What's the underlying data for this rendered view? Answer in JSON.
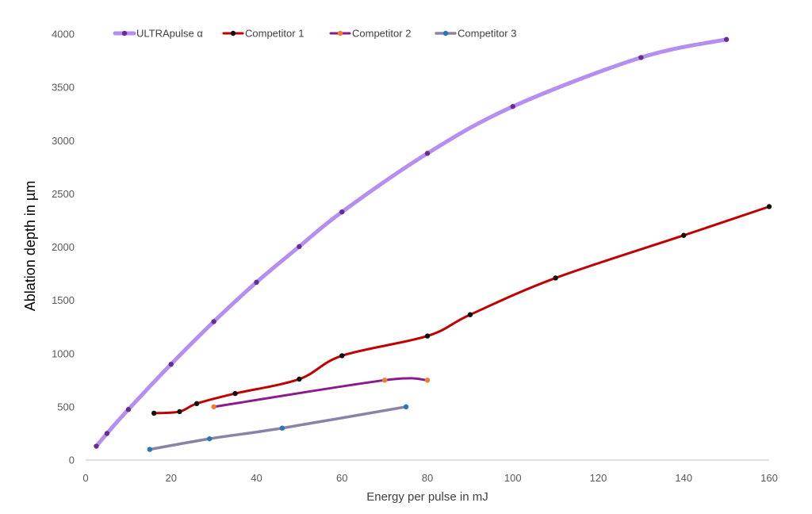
{
  "chart_data": {
    "type": "line",
    "title": "",
    "xlabel": "Energy per pulse in mJ",
    "ylabel": "Ablation depth in µm",
    "xlim": [
      0,
      160
    ],
    "ylim": [
      0,
      4000
    ],
    "x_ticks": [
      0,
      20,
      40,
      60,
      80,
      100,
      120,
      140,
      160
    ],
    "y_ticks": [
      0,
      500,
      1000,
      1500,
      2000,
      2500,
      3000,
      3500,
      4000
    ],
    "grid": false,
    "legend_position": "top",
    "series": [
      {
        "name": "ULTRApulse α",
        "line_color": "#b48ef0",
        "marker_color": "#6a2c91",
        "points": [
          [
            2.5,
            130
          ],
          [
            5,
            250
          ],
          [
            10,
            475
          ],
          [
            20,
            900
          ],
          [
            30,
            1300
          ],
          [
            40,
            1670
          ],
          [
            50,
            2005
          ],
          [
            60,
            2330
          ],
          [
            80,
            2880
          ],
          [
            100,
            3320
          ],
          [
            130,
            3780
          ],
          [
            150,
            3950
          ]
        ]
      },
      {
        "name": "Competitor 1",
        "line_color": "#c00000",
        "marker_color": "#111111",
        "points": [
          [
            16,
            440
          ],
          [
            22,
            455
          ],
          [
            26,
            530
          ],
          [
            35,
            625
          ],
          [
            50,
            760
          ],
          [
            60,
            980
          ],
          [
            80,
            1165
          ],
          [
            90,
            1365
          ],
          [
            110,
            1710
          ],
          [
            140,
            2110
          ],
          [
            160,
            2380
          ]
        ]
      },
      {
        "name": "Competitor 2",
        "line_color": "#8b1a8f",
        "marker_color": "#ed7d31",
        "points": [
          [
            30,
            500
          ],
          [
            70,
            750
          ],
          [
            80,
            750
          ]
        ]
      },
      {
        "name": "Competitor 3",
        "line_color": "#8a83a8",
        "marker_color": "#2e75b6",
        "points": [
          [
            15,
            100
          ],
          [
            29,
            200
          ],
          [
            46,
            300
          ],
          [
            75,
            500
          ]
        ]
      }
    ]
  }
}
